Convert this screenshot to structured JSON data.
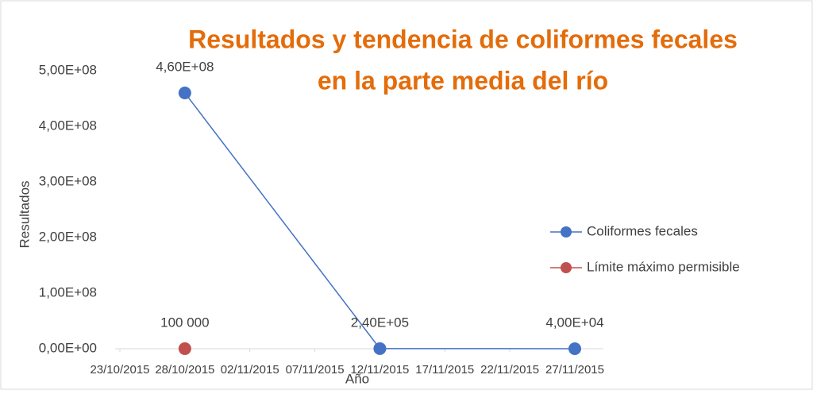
{
  "chart_data": {
    "type": "line",
    "title": [
      "Resultados y tendencia de coliformes fecales",
      "en la parte media del río"
    ],
    "y_label": "Resultados",
    "x_label": "Año",
    "xlim": [
      "23/10/2015",
      "27/11/2015"
    ],
    "xticks": [
      "23/10/2015",
      "28/10/2015",
      "02/11/2015",
      "07/11/2015",
      "12/11/2015",
      "17/11/2015",
      "22/11/2015",
      "27/11/2015"
    ],
    "ylim": [
      0,
      500000000
    ],
    "yticks": [
      {
        "value": 0,
        "label": "0,00E+00"
      },
      {
        "value": 100000000,
        "label": "1,00E+08"
      },
      {
        "value": 200000000,
        "label": "2,00E+08"
      },
      {
        "value": 300000000,
        "label": "3,00E+08"
      },
      {
        "value": 400000000,
        "label": "4,00E+08"
      },
      {
        "value": 500000000,
        "label": "5,00E+08"
      }
    ],
    "grid": false,
    "legend": "right",
    "series": [
      {
        "name": "Coliformes fecales",
        "color": "#4472c4",
        "x": [
          "28/10/2015",
          "12/11/2015",
          "27/11/2015"
        ],
        "values": [
          460000000,
          240000,
          40000
        ],
        "value_labels": [
          "4,60E+08",
          "2,40E+05",
          "4,00E+04"
        ]
      },
      {
        "name": "Límite máximo permisible",
        "color": "#c0504d",
        "x": [
          "28/10/2015"
        ],
        "values": [
          100000
        ],
        "value_labels": [
          "100 000"
        ]
      }
    ]
  }
}
